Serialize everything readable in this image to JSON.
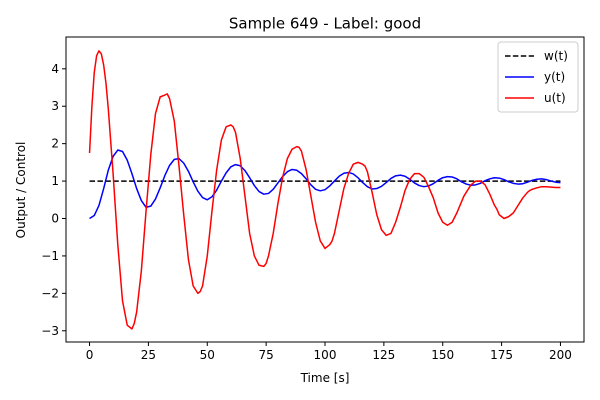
{
  "chart_data": {
    "type": "line",
    "title": "Sample 649 - Label: good",
    "xlabel": "Time [s]",
    "ylabel": "Output / Control",
    "xlim": [
      -10,
      210
    ],
    "ylim": [
      -3.3,
      4.85
    ],
    "xticks": [
      0,
      25,
      50,
      75,
      100,
      125,
      150,
      175,
      200
    ],
    "yticks": [
      -3,
      -2,
      -1,
      0,
      1,
      2,
      3,
      4
    ],
    "grid": false,
    "legend_position": "top-right",
    "series": [
      {
        "name": "w(t)",
        "color": "#000000",
        "dash": "dashed",
        "x": [
          0,
          200
        ],
        "y": [
          1,
          1
        ]
      },
      {
        "name": "y(t)",
        "color": "#0000ff",
        "dash": "solid",
        "x": [
          0,
          2,
          4,
          6,
          8,
          10,
          12,
          14,
          16,
          18,
          20,
          22,
          24,
          26,
          28,
          30,
          32,
          34,
          36,
          38,
          40,
          42,
          44,
          46,
          48,
          50,
          52,
          54,
          56,
          58,
          60,
          62,
          64,
          66,
          68,
          70,
          72,
          74,
          76,
          78,
          80,
          82,
          84,
          86,
          88,
          90,
          92,
          94,
          96,
          98,
          100,
          102,
          104,
          106,
          108,
          110,
          112,
          114,
          116,
          118,
          120,
          122,
          124,
          126,
          128,
          130,
          132,
          134,
          136,
          138,
          140,
          142,
          144,
          146,
          148,
          150,
          152,
          154,
          156,
          158,
          160,
          162,
          164,
          166,
          168,
          170,
          172,
          174,
          176,
          178,
          180,
          182,
          184,
          186,
          188,
          190,
          192,
          194,
          196,
          198,
          200
        ],
        "y": [
          0.0,
          0.08,
          0.35,
          0.8,
          1.3,
          1.66,
          1.83,
          1.79,
          1.56,
          1.2,
          0.8,
          0.48,
          0.3,
          0.33,
          0.52,
          0.82,
          1.15,
          1.42,
          1.58,
          1.6,
          1.48,
          1.26,
          0.98,
          0.73,
          0.56,
          0.5,
          0.58,
          0.76,
          1.0,
          1.22,
          1.38,
          1.44,
          1.41,
          1.28,
          1.09,
          0.88,
          0.72,
          0.65,
          0.67,
          0.78,
          0.95,
          1.12,
          1.25,
          1.31,
          1.29,
          1.2,
          1.06,
          0.9,
          0.78,
          0.74,
          0.77,
          0.87,
          1.0,
          1.13,
          1.21,
          1.23,
          1.19,
          1.09,
          0.96,
          0.85,
          0.79,
          0.8,
          0.86,
          0.96,
          1.07,
          1.14,
          1.16,
          1.13,
          1.05,
          0.95,
          0.88,
          0.85,
          0.87,
          0.93,
          1.02,
          1.09,
          1.12,
          1.11,
          1.06,
          0.98,
          0.92,
          0.89,
          0.9,
          0.94,
          1.01,
          1.06,
          1.09,
          1.08,
          1.04,
          0.98,
          0.94,
          0.92,
          0.93,
          0.97,
          1.02,
          1.05,
          1.06,
          1.04,
          1.0,
          0.97,
          0.96
        ]
      },
      {
        "name": "u(t)",
        "color": "#ff0000",
        "dash": "solid",
        "x": [
          0,
          1,
          2,
          3,
          4,
          5,
          6,
          7,
          8,
          10,
          12,
          14,
          16,
          18,
          19,
          20,
          22,
          24,
          26,
          28,
          30,
          32,
          33,
          34,
          36,
          38,
          40,
          42,
          44,
          46,
          47,
          48,
          50,
          52,
          54,
          56,
          58,
          60,
          61,
          62,
          64,
          66,
          68,
          70,
          72,
          74,
          75,
          76,
          78,
          80,
          82,
          84,
          86,
          88,
          89,
          90,
          92,
          94,
          96,
          98,
          100,
          102,
          103,
          104,
          106,
          108,
          110,
          112,
          114,
          116,
          117,
          118,
          120,
          122,
          124,
          126,
          128,
          130,
          131,
          132,
          134,
          136,
          138,
          140,
          142,
          144,
          145,
          146,
          148,
          150,
          152,
          154,
          156,
          158,
          159,
          160,
          162,
          164,
          166,
          168,
          170,
          172,
          173,
          174,
          176,
          178,
          180,
          182,
          184,
          186,
          187,
          188,
          190,
          192,
          194,
          196,
          198,
          200
        ],
        "y": [
          1.75,
          3.0,
          3.9,
          4.35,
          4.48,
          4.4,
          4.1,
          3.6,
          2.9,
          1.2,
          -0.7,
          -2.2,
          -2.85,
          -2.95,
          -2.8,
          -2.5,
          -1.4,
          0.2,
          1.7,
          2.8,
          3.25,
          3.3,
          3.33,
          3.2,
          2.6,
          1.4,
          0.1,
          -1.1,
          -1.8,
          -2.0,
          -1.95,
          -1.8,
          -1.0,
          0.2,
          1.3,
          2.1,
          2.45,
          2.5,
          2.45,
          2.3,
          1.6,
          0.6,
          -0.4,
          -1.0,
          -1.25,
          -1.28,
          -1.2,
          -1.0,
          -0.4,
          0.4,
          1.1,
          1.6,
          1.85,
          1.92,
          1.9,
          1.8,
          1.3,
          0.6,
          -0.1,
          -0.6,
          -0.8,
          -0.7,
          -0.6,
          -0.4,
          0.2,
          0.8,
          1.2,
          1.45,
          1.5,
          1.45,
          1.4,
          1.25,
          0.7,
          0.1,
          -0.3,
          -0.45,
          -0.4,
          -0.1,
          0.1,
          0.3,
          0.75,
          1.05,
          1.2,
          1.2,
          1.1,
          0.85,
          0.7,
          0.55,
          0.15,
          -0.1,
          -0.18,
          -0.1,
          0.15,
          0.45,
          0.6,
          0.7,
          0.9,
          1.0,
          1.0,
          0.9,
          0.65,
          0.35,
          0.25,
          0.1,
          0.0,
          0.05,
          0.15,
          0.35,
          0.55,
          0.7,
          0.75,
          0.78,
          0.82,
          0.85,
          0.85,
          0.84,
          0.83,
          0.83
        ]
      }
    ]
  }
}
